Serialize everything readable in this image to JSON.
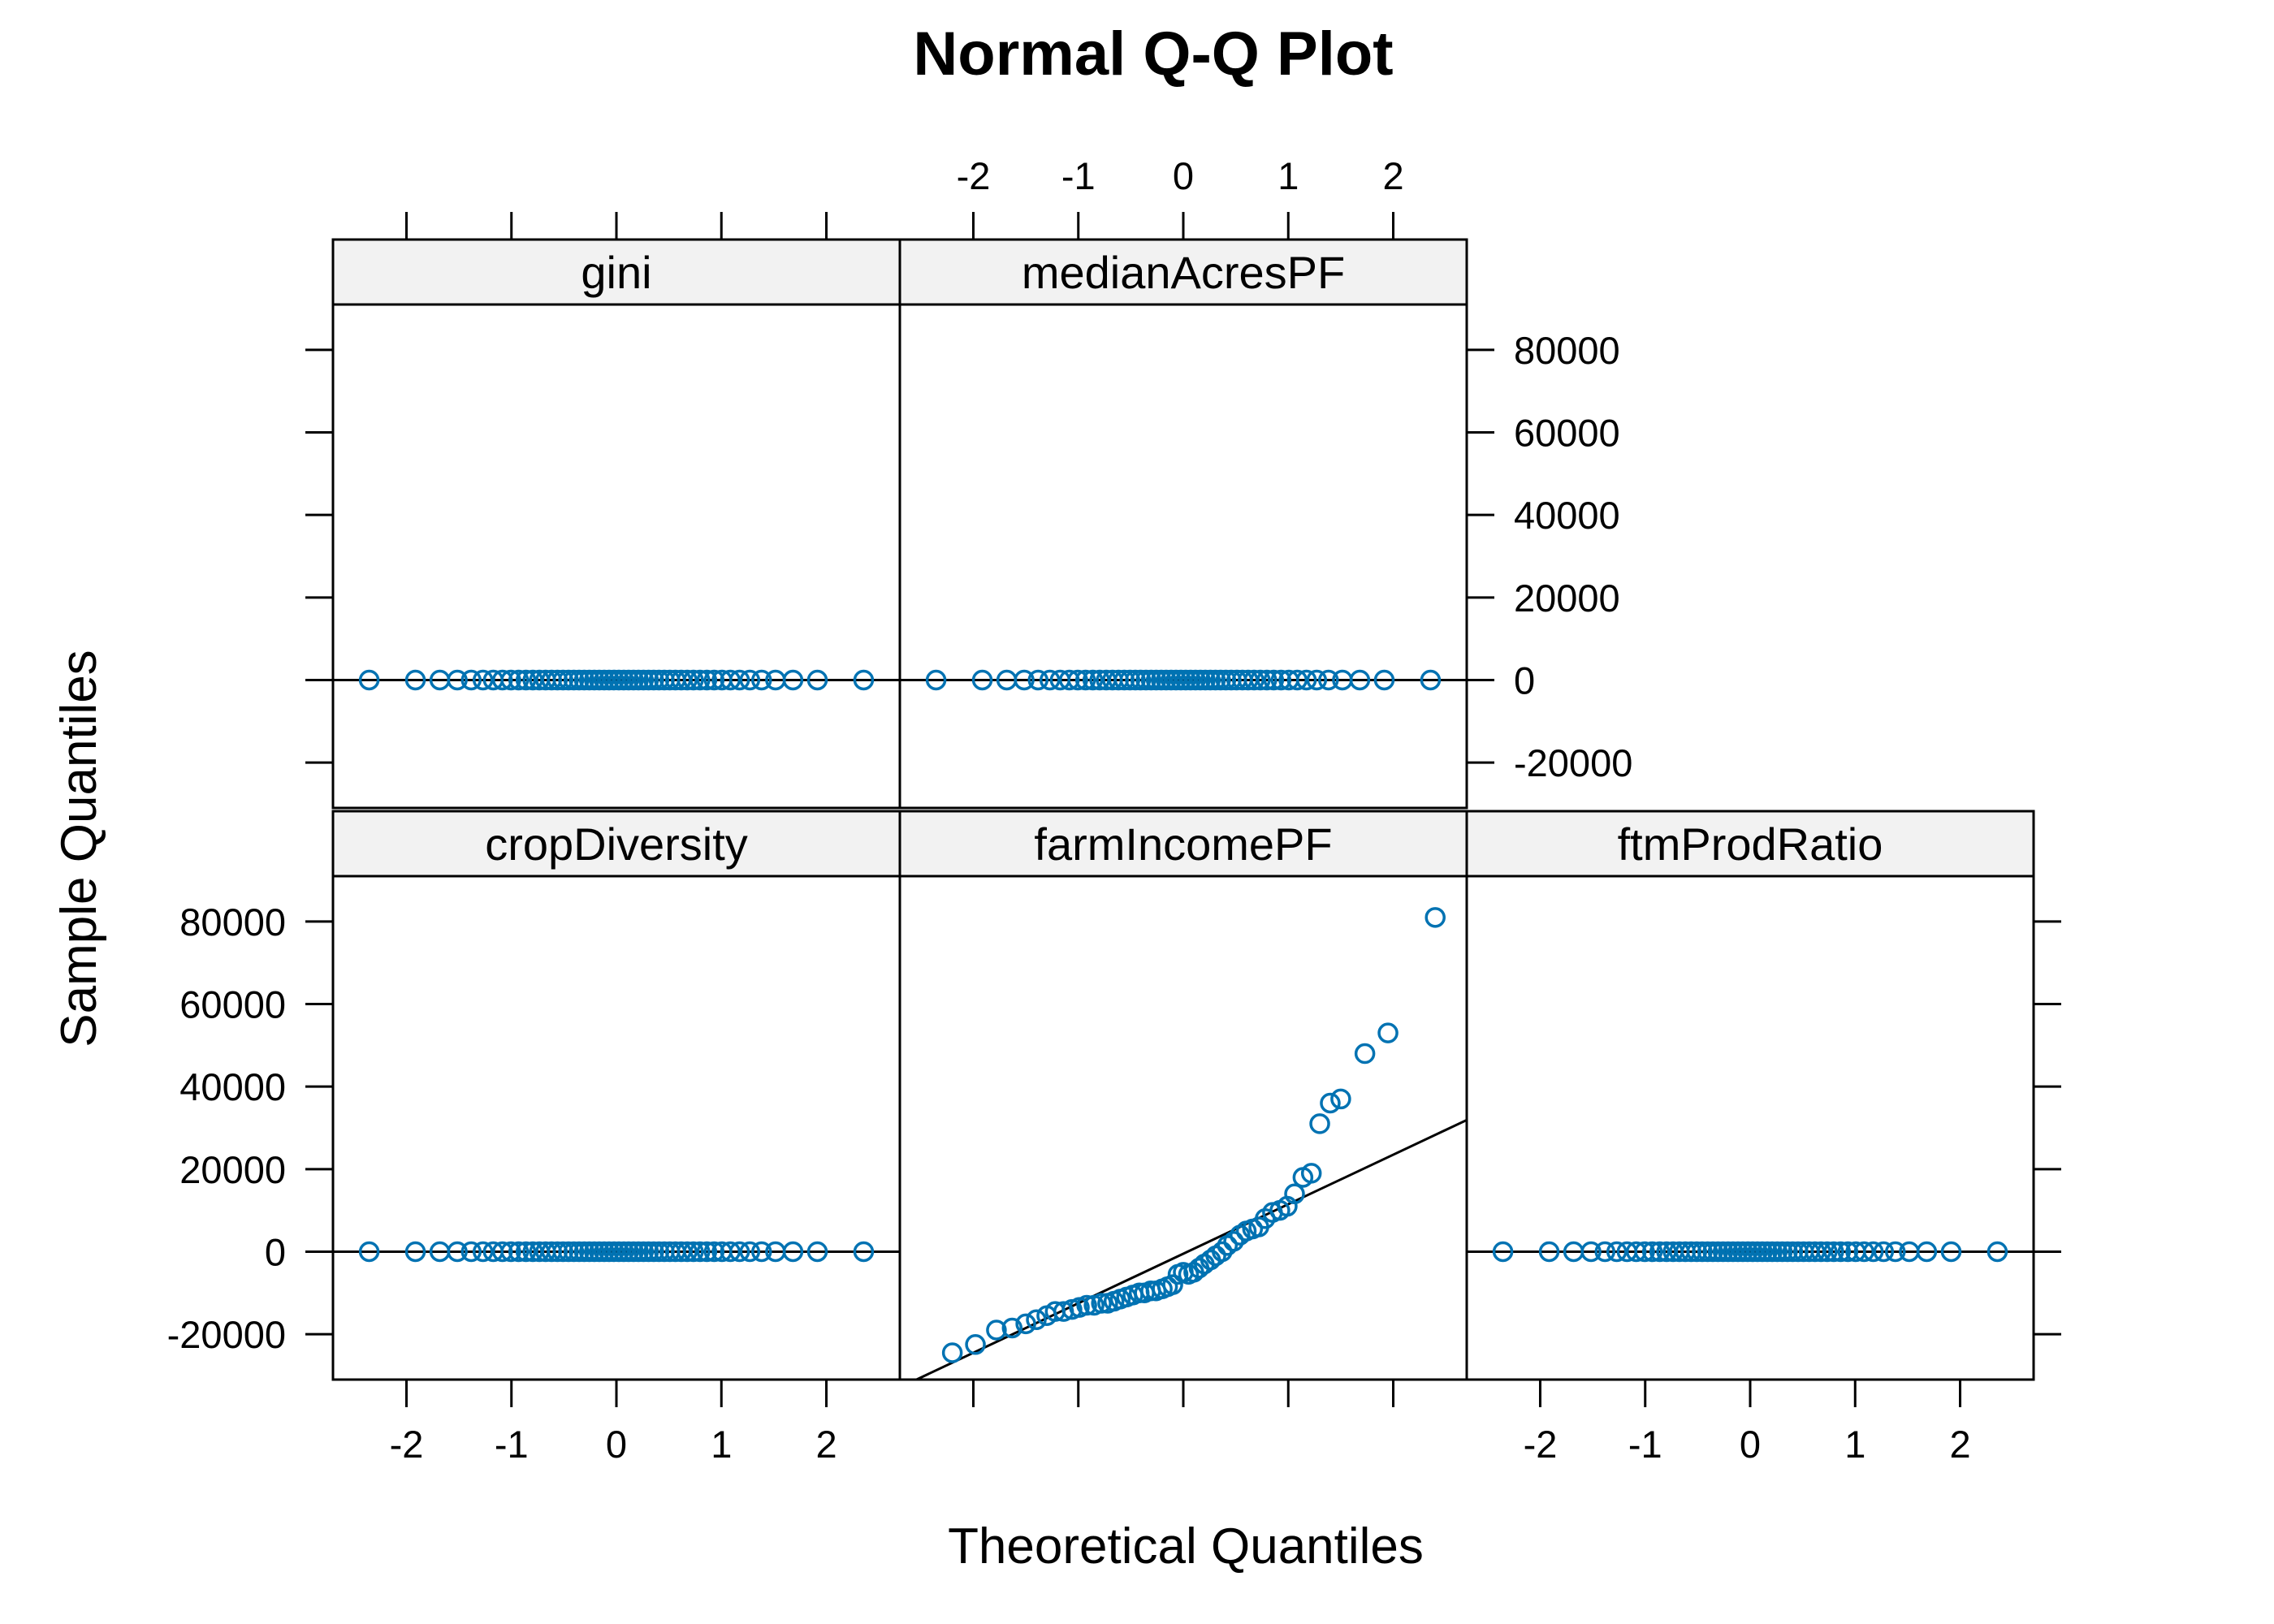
{
  "chart_data": {
    "type": "scatter",
    "subtype": "normal-qq-lattice",
    "title": "Normal Q-Q Plot",
    "xlabel": "Theoretical Quantiles",
    "ylabel": "Sample Quantiles",
    "xlim": [
      -2.7,
      2.7
    ],
    "ylim": [
      -31000,
      91000
    ],
    "x_ticks": [
      -2,
      -1,
      0,
      1,
      2
    ],
    "y_ticks": [
      -20000,
      0,
      20000,
      40000,
      60000,
      80000
    ],
    "marker_color": "#0072B2",
    "line_color": "#000000",
    "strip_color": "#F2F2F2",
    "panels": [
      {
        "name": "gini",
        "sample_range": [
          0,
          0
        ],
        "reference_line": {
          "intercept": 0,
          "slope": 0
        }
      },
      {
        "name": "medianAcresPF",
        "sample_range": [
          0,
          0
        ],
        "reference_line": {
          "intercept": 0,
          "slope": 0
        }
      },
      {
        "name": "cropDiversity",
        "sample_range": [
          0,
          0
        ],
        "reference_line": {
          "intercept": 0,
          "slope": 0
        }
      },
      {
        "name": "farmIncomePF",
        "reference_line": {
          "intercept": -500,
          "slope": 12000
        },
        "points": [
          [
            -2.2,
            -24500
          ],
          [
            -1.98,
            -22500
          ],
          [
            -1.78,
            -19000
          ],
          [
            -1.63,
            -18500
          ],
          [
            -1.5,
            -17500
          ],
          [
            -1.4,
            -16500
          ],
          [
            -1.3,
            -15500
          ],
          [
            -1.22,
            -14500
          ],
          [
            -1.14,
            -14500
          ],
          [
            -1.06,
            -14000
          ],
          [
            -0.99,
            -13500
          ],
          [
            -0.92,
            -13000
          ],
          [
            -0.85,
            -13000
          ],
          [
            -0.78,
            -12500
          ],
          [
            -0.72,
            -12500
          ],
          [
            -0.66,
            -12000
          ],
          [
            -0.6,
            -11500
          ],
          [
            -0.54,
            -11000
          ],
          [
            -0.48,
            -10500
          ],
          [
            -0.42,
            -10000
          ],
          [
            -0.37,
            -10000
          ],
          [
            -0.31,
            -9500
          ],
          [
            -0.26,
            -9500
          ],
          [
            -0.2,
            -9000
          ],
          [
            -0.15,
            -8500
          ],
          [
            -0.1,
            -8000
          ],
          [
            -0.05,
            -5500
          ],
          [
            0.0,
            -5000
          ],
          [
            0.05,
            -5500
          ],
          [
            0.1,
            -5000
          ],
          [
            0.15,
            -4000
          ],
          [
            0.2,
            -3000
          ],
          [
            0.26,
            -2000
          ],
          [
            0.31,
            -1000
          ],
          [
            0.37,
            0
          ],
          [
            0.42,
            1500
          ],
          [
            0.48,
            2500
          ],
          [
            0.54,
            4000
          ],
          [
            0.6,
            5000
          ],
          [
            0.66,
            5500
          ],
          [
            0.72,
            6000
          ],
          [
            0.78,
            8000
          ],
          [
            0.85,
            9500
          ],
          [
            0.92,
            10000
          ],
          [
            0.99,
            11000
          ],
          [
            1.06,
            14000
          ],
          [
            1.14,
            18000
          ],
          [
            1.22,
            19000
          ],
          [
            1.3,
            31000
          ],
          [
            1.4,
            36000
          ],
          [
            1.5,
            37000
          ],
          [
            1.73,
            48000
          ],
          [
            1.95,
            53000
          ],
          [
            2.4,
            81000
          ]
        ]
      },
      {
        "name": "ftmProdRatio",
        "sample_range": [
          0,
          0
        ],
        "reference_line": {
          "intercept": 0,
          "slope": 0
        }
      }
    ]
  }
}
